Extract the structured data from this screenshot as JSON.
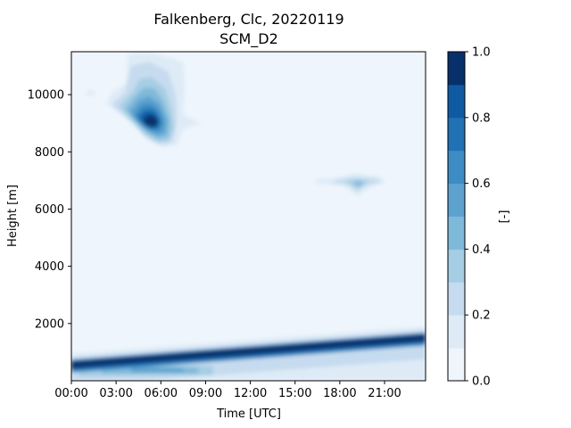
{
  "chart_data": {
    "type": "contourf",
    "title": "Falkenberg, Clc, 20220119",
    "subtitle": "SCM_D2",
    "xlabel": "Time [UTC]",
    "ylabel": "Height [m]",
    "x_unit": "hours UTC",
    "xlim": [
      0,
      23.75
    ],
    "ylim": [
      0,
      11500
    ],
    "x_ticks": [
      {
        "value": 0,
        "label": "00:00"
      },
      {
        "value": 3,
        "label": "03:00"
      },
      {
        "value": 6,
        "label": "06:00"
      },
      {
        "value": 9,
        "label": "09:00"
      },
      {
        "value": 12,
        "label": "12:00"
      },
      {
        "value": 15,
        "label": "15:00"
      },
      {
        "value": 18,
        "label": "18:00"
      },
      {
        "value": 21,
        "label": "21:00"
      }
    ],
    "y_ticks": [
      {
        "value": 2000,
        "label": "2000"
      },
      {
        "value": 4000,
        "label": "4000"
      },
      {
        "value": 6000,
        "label": "6000"
      },
      {
        "value": 8000,
        "label": "8000"
      },
      {
        "value": 10000,
        "label": "10000"
      }
    ],
    "colorbar": {
      "label": "[-]",
      "range": [
        0,
        1
      ],
      "ticks": [
        "0.0",
        "0.2",
        "0.4",
        "0.6",
        "0.8",
        "1.0"
      ],
      "levels": [
        0,
        0.1,
        0.2,
        0.3,
        0.4,
        0.5,
        0.6,
        0.7,
        0.8,
        0.9,
        1.0
      ],
      "colors": [
        "#eef5fc",
        "#deebf7",
        "#c6dbef",
        "#a5cde3",
        "#7fb9da",
        "#5da2cf",
        "#3d8dc4",
        "#2171b5",
        "#0f5ba3",
        "#08306b"
      ]
    },
    "features": [
      {
        "name": "upper cloud",
        "x_range": [
          2.2,
          7.5
        ],
        "y_range": [
          8200,
          11400
        ],
        "peak_value": 1.0,
        "peak_at": {
          "x": 5.3,
          "y": 8900
        }
      },
      {
        "name": "mid cloud",
        "x_range": [
          16.5,
          21
        ],
        "y_range": [
          6500,
          7100
        ],
        "peak_value": 0.6,
        "peak_at": {
          "x": 19.3,
          "y": 6850
        }
      },
      {
        "name": "boundary layer cloud",
        "x_range": [
          0,
          23.75
        ],
        "y_range": [
          0,
          1800
        ],
        "peak_value": 1.0,
        "top_start": 800,
        "top_end": 1600
      }
    ]
  }
}
